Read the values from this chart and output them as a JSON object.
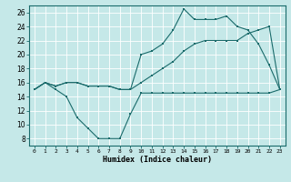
{
  "title": "",
  "xlabel": "Humidex (Indice chaleur)",
  "ylabel": "",
  "bg_color": "#c5e8e8",
  "line_color": "#1a6b6b",
  "grid_color": "#ffffff",
  "xlim": [
    -0.5,
    23.5
  ],
  "ylim": [
    7,
    27
  ],
  "yticks": [
    8,
    10,
    12,
    14,
    16,
    18,
    20,
    22,
    24,
    26
  ],
  "xticks": [
    0,
    1,
    2,
    3,
    4,
    5,
    6,
    7,
    8,
    9,
    10,
    11,
    12,
    13,
    14,
    15,
    16,
    17,
    18,
    19,
    20,
    21,
    22,
    23
  ],
  "line1_x": [
    0,
    1,
    2,
    3,
    4,
    5,
    6,
    7,
    8,
    9,
    10,
    11,
    12,
    13,
    14,
    15,
    16,
    17,
    18,
    19,
    20,
    21,
    22,
    23
  ],
  "line1_y": [
    15,
    16,
    15,
    14,
    11,
    9.5,
    8,
    8,
    8,
    11.5,
    14.5,
    14.5,
    14.5,
    14.5,
    14.5,
    14.5,
    14.5,
    14.5,
    14.5,
    14.5,
    14.5,
    14.5,
    14.5,
    15
  ],
  "line2_x": [
    0,
    1,
    2,
    3,
    4,
    5,
    6,
    7,
    8,
    9,
    10,
    11,
    12,
    13,
    14,
    15,
    16,
    17,
    18,
    19,
    20,
    21,
    22,
    23
  ],
  "line2_y": [
    15,
    16,
    15.5,
    16,
    16,
    15.5,
    15.5,
    15.5,
    15,
    15,
    16,
    17,
    18,
    19,
    20.5,
    21.5,
    22,
    22,
    22,
    22,
    23,
    23.5,
    24,
    15
  ],
  "line3_x": [
    0,
    1,
    2,
    3,
    4,
    5,
    6,
    7,
    8,
    9,
    10,
    11,
    12,
    13,
    14,
    15,
    16,
    17,
    18,
    19,
    20,
    21,
    22,
    23
  ],
  "line3_y": [
    15,
    16,
    15.5,
    16,
    16,
    15.5,
    15.5,
    15.5,
    15,
    15,
    20,
    20.5,
    21.5,
    23.5,
    26.5,
    25,
    25,
    25,
    25.5,
    24,
    23.5,
    21.5,
    18.5,
    15
  ]
}
